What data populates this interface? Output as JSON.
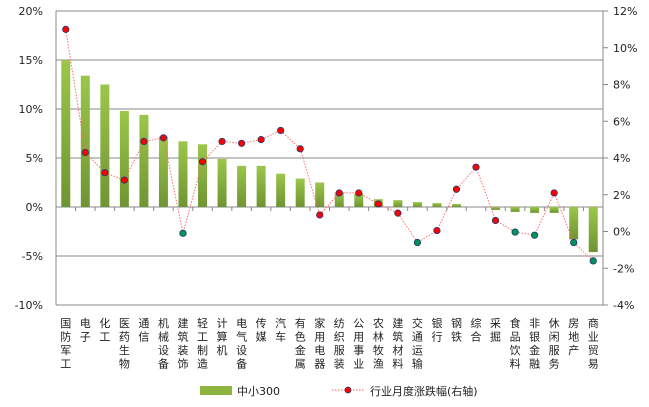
{
  "chart_data": {
    "type": "bar+line",
    "categories": [
      "国防军工",
      "电子",
      "化工",
      "医药生物",
      "通信",
      "机械设备",
      "建筑装饰",
      "轻工制造",
      "计算机",
      "电气设备",
      "传媒",
      "汽车",
      "有色金属",
      "家用电器",
      "纺织服装",
      "公用事业",
      "农林牧渔",
      "建筑材料",
      "交通运输",
      "银行",
      "钢铁",
      "综合",
      "采掘",
      "食品饮料",
      "非银金融",
      "休闲服务",
      "房地产",
      "商业贸易"
    ],
    "series": [
      {
        "name": "中小300",
        "type": "bar",
        "axis": "left",
        "color": "#8db43e",
        "values": [
          15.0,
          13.4,
          12.5,
          9.8,
          9.4,
          7.2,
          6.7,
          6.4,
          4.9,
          4.2,
          4.2,
          3.4,
          2.9,
          2.5,
          1.5,
          1.4,
          0.8,
          0.7,
          0.5,
          0.4,
          0.3,
          0.0,
          -0.3,
          -0.5,
          -0.6,
          -0.6,
          -3.3,
          -4.6
        ]
      },
      {
        "name": "行业月度涨跌幅(右轴)",
        "type": "line",
        "axis": "right",
        "color": "#ff0000",
        "negative_color": "#00945a",
        "values": [
          11.0,
          4.3,
          3.2,
          2.8,
          4.9,
          5.1,
          -0.1,
          3.8,
          4.9,
          4.8,
          5.0,
          5.5,
          4.5,
          0.9,
          2.1,
          2.1,
          1.5,
          1.0,
          -0.6,
          0.05,
          2.3,
          3.5,
          0.6,
          -0.03,
          -0.2,
          2.1,
          -0.6,
          -1.6
        ]
      }
    ],
    "left_axis": {
      "min": -10,
      "max": 20,
      "step": 5,
      "ticks": [
        "-10%",
        "-5%",
        "0%",
        "5%",
        "10%",
        "15%",
        "20%"
      ]
    },
    "right_axis": {
      "min": -4,
      "max": 12,
      "step": 2,
      "ticks": [
        "-4%",
        "-2%",
        "0%",
        "2%",
        "4%",
        "6%",
        "8%",
        "10%",
        "12%"
      ]
    },
    "grid": true,
    "legend": "bottom"
  }
}
